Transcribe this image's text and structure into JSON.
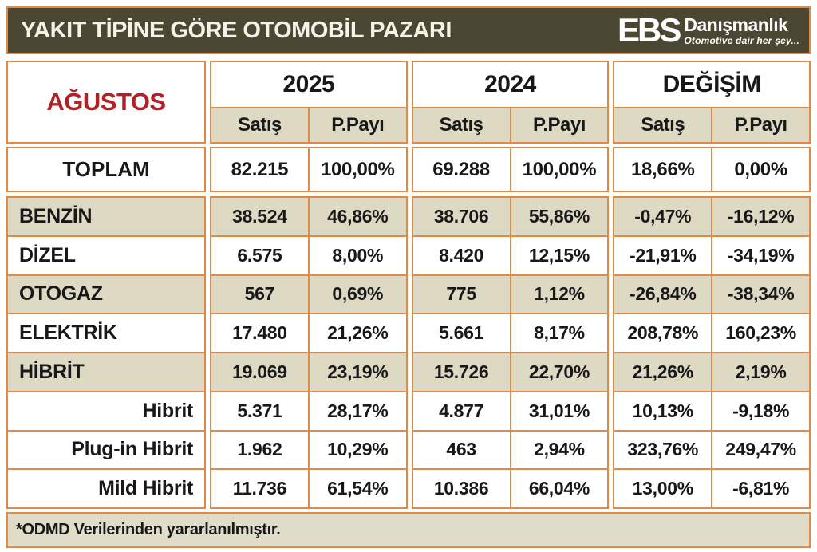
{
  "title": "YAKIT TİPİNE GÖRE OTOMOBİL PAZARI",
  "logo": {
    "ebs": "EBS",
    "name": "Danışmanlık",
    "tagline": "Otomotive dair her şey..."
  },
  "table": {
    "month": "AĞUSTOS",
    "groups": [
      {
        "year": "2025",
        "cols": [
          "Satış",
          "P.Payı"
        ]
      },
      {
        "year": "2024",
        "cols": [
          "Satış",
          "P.Payı"
        ]
      },
      {
        "year": "DEĞİŞİM",
        "cols": [
          "Satış",
          "P.Payı"
        ]
      }
    ],
    "total_row": {
      "label": "TOPLAM",
      "values": [
        "82.215",
        "100,00%",
        "69.288",
        "100,00%",
        "18,66%",
        "0,00%"
      ]
    },
    "rows": [
      {
        "label": "BENZİN",
        "style": "main",
        "shade": true,
        "values": [
          "38.524",
          "46,86%",
          "38.706",
          "55,86%",
          "-0,47%",
          "-16,12%"
        ]
      },
      {
        "label": "DİZEL",
        "style": "main",
        "shade": false,
        "values": [
          "6.575",
          "8,00%",
          "8.420",
          "12,15%",
          "-21,91%",
          "-34,19%"
        ]
      },
      {
        "label": "OTOGAZ",
        "style": "main",
        "shade": true,
        "values": [
          "567",
          "0,69%",
          "775",
          "1,12%",
          "-26,84%",
          "-38,34%"
        ]
      },
      {
        "label": "ELEKTRİK",
        "style": "main",
        "shade": false,
        "values": [
          "17.480",
          "21,26%",
          "5.661",
          "8,17%",
          "208,78%",
          "160,23%"
        ]
      },
      {
        "label": "HİBRİT",
        "style": "main",
        "shade": true,
        "values": [
          "19.069",
          "23,19%",
          "15.726",
          "22,70%",
          "21,26%",
          "2,19%"
        ]
      },
      {
        "label": "Hibrit",
        "style": "sub",
        "shade": false,
        "values": [
          "5.371",
          "28,17%",
          "4.877",
          "31,01%",
          "10,13%",
          "-9,18%"
        ]
      },
      {
        "label": "Plug-in Hibrit",
        "style": "sub",
        "shade": false,
        "values": [
          "1.962",
          "10,29%",
          "463",
          "2,94%",
          "323,76%",
          "249,47%"
        ]
      },
      {
        "label": "Mild Hibrit",
        "style": "sub",
        "shade": false,
        "values": [
          "11.736",
          "61,54%",
          "10.386",
          "66,04%",
          "13,00%",
          "-6,81%"
        ]
      }
    ]
  },
  "footer": "*ODMD Verilerinden yararlanılmıştır.",
  "colors": {
    "header_bg": "#4a4733",
    "border_orange": "#dd8a4a",
    "shade_beige": "#ddd9c3",
    "footer_beige": "#dfdcc8",
    "month_red": "#b32025",
    "text": "#181818",
    "title_text": "#f5f2e8"
  }
}
